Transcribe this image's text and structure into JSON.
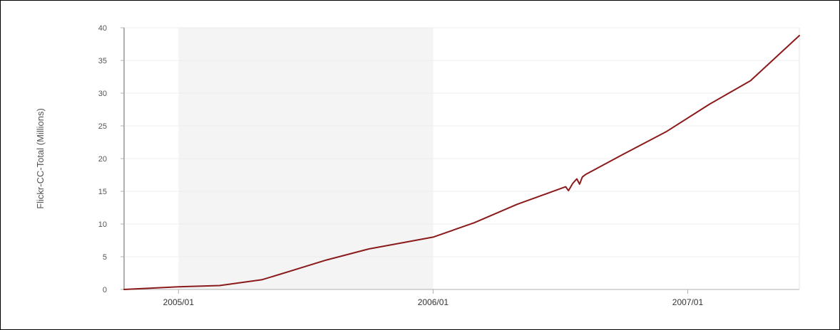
{
  "chart_data": {
    "type": "line",
    "title": "",
    "xlabel": "",
    "ylabel": "Flickr-CC-Total (Millions)",
    "x_ticks": [
      "2005/01",
      "2006/01",
      "2007/01"
    ],
    "y_ticks": [
      0,
      5,
      10,
      15,
      20,
      25,
      30,
      35,
      40
    ],
    "xlim": [
      "2004-10-15",
      "2007-06-10"
    ],
    "ylim": [
      0,
      40
    ],
    "grid": "horizontal",
    "legend": "none",
    "shaded_range": [
      "2005-01-01",
      "2006-01-01"
    ],
    "series": [
      {
        "color": "#8b1a1a",
        "x": [
          "2004-10-15",
          "2005-01-01",
          "2005-03-01",
          "2005-05-01",
          "2005-06-01",
          "2005-08-01",
          "2005-10-01",
          "2006-01-01",
          "2006-03-01",
          "2006-05-01",
          "2006-07-10",
          "2006-07-14",
          "2006-07-20",
          "2006-07-26",
          "2006-07-30",
          "2006-08-03",
          "2006-08-08",
          "2006-10-01",
          "2006-12-01",
          "2007-02-01",
          "2007-04-01",
          "2007-06-10"
        ],
        "values": [
          0,
          0.4,
          0.6,
          1.5,
          2.5,
          4.5,
          6.2,
          8,
          10.2,
          13,
          15.7,
          15.1,
          16.2,
          16.9,
          16.1,
          17.2,
          17.6,
          20.7,
          24.1,
          28.3,
          31.9,
          38.8
        ]
      }
    ]
  }
}
